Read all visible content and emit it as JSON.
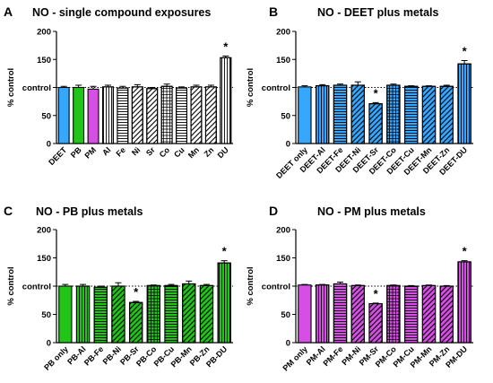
{
  "colors": {
    "deet": "#35a7ff",
    "pb": "#22c41a",
    "pm": "#d64fe4",
    "white": "#ffffff"
  },
  "chart_data": [
    {
      "panel": "A",
      "title": "NO - single compound exposures",
      "type": "bar",
      "ylabel": "% control",
      "ylim": [
        0,
        200
      ],
      "yticks": [
        0,
        50,
        100,
        150,
        200
      ],
      "ytick_labels": [
        "0",
        "50",
        "control",
        "150",
        "200"
      ],
      "reference_line": 100,
      "categories": [
        "DEET",
        "PB",
        "PM",
        "Al",
        "Fe",
        "Ni",
        "Sr",
        "Co",
        "Cu",
        "Mn",
        "Zn",
        "DU"
      ],
      "values": [
        100,
        100,
        97,
        101,
        99,
        101,
        98,
        102,
        99,
        101,
        101,
        153
      ],
      "errors": [
        2,
        4,
        5,
        3,
        3,
        4,
        2,
        4,
        2,
        3,
        3,
        3
      ],
      "significant": [
        false,
        false,
        false,
        false,
        false,
        false,
        false,
        false,
        false,
        false,
        false,
        true
      ],
      "fills": [
        "deet",
        "pb",
        "pm",
        "white",
        "white",
        "white",
        "white",
        "white",
        "white",
        "white",
        "white",
        "white"
      ],
      "patterns": [
        "solid",
        "solid",
        "solid",
        "vlines",
        "hlines",
        "diag",
        "diag",
        "grid",
        "hlines",
        "diag",
        "diag",
        "vlines"
      ],
      "star": "*"
    },
    {
      "panel": "B",
      "title": "NO - DEET plus metals",
      "type": "bar",
      "ylabel": "% control",
      "ylim": [
        0,
        200
      ],
      "yticks": [
        0,
        50,
        100,
        150,
        200
      ],
      "ytick_labels": [
        "0",
        "50",
        "control",
        "150",
        "200"
      ],
      "reference_line": 100,
      "categories": [
        "DEET only",
        "DEET-Al",
        "DEET-Fe",
        "DEET-Ni",
        "DEET-Sr",
        "DEET-Co",
        "DEET-Cu",
        "DEET-Mn",
        "DEET-Zn",
        "DEET-DU"
      ],
      "values": [
        101,
        103,
        104,
        104,
        71,
        104,
        102,
        102,
        102,
        142
      ],
      "errors": [
        2,
        2,
        2,
        6,
        2,
        2,
        1,
        1,
        2,
        6
      ],
      "significant": [
        false,
        false,
        false,
        false,
        true,
        false,
        false,
        false,
        false,
        true
      ],
      "fills": [
        "deet",
        "deet",
        "deet",
        "deet",
        "deet",
        "deet",
        "deet",
        "deet",
        "deet",
        "deet"
      ],
      "patterns": [
        "solid",
        "vlines",
        "hlines",
        "diag",
        "diag",
        "grid",
        "hlines",
        "diag",
        "diag",
        "vlines"
      ],
      "star": "*"
    },
    {
      "panel": "C",
      "title": "NO - PB plus metals",
      "type": "bar",
      "ylabel": "% control",
      "ylim": [
        0,
        200
      ],
      "yticks": [
        0,
        50,
        100,
        150,
        200
      ],
      "ytick_labels": [
        "0",
        "50",
        "control",
        "150",
        "200"
      ],
      "reference_line": 100,
      "categories": [
        "PB only",
        "PB-Al",
        "PB-Fe",
        "PB-Ni",
        "PB-Sr",
        "PB-Co",
        "PB-Cu",
        "PB-Mn",
        "PB-Zn",
        "PB-DU"
      ],
      "values": [
        100,
        100,
        98,
        100,
        71,
        101,
        101,
        104,
        101,
        141
      ],
      "errors": [
        3,
        3,
        2,
        6,
        2,
        1,
        2,
        5,
        2,
        4
      ],
      "significant": [
        false,
        false,
        false,
        false,
        true,
        false,
        false,
        false,
        false,
        true
      ],
      "fills": [
        "pb",
        "pb",
        "pb",
        "pb",
        "pb",
        "pb",
        "pb",
        "pb",
        "pb",
        "pb"
      ],
      "patterns": [
        "solid",
        "vlines",
        "hlines",
        "diag",
        "diag",
        "grid",
        "hlines",
        "diag",
        "diag",
        "vlines"
      ],
      "star": "*"
    },
    {
      "panel": "D",
      "title": "NO - PM plus metals",
      "type": "bar",
      "ylabel": "% control",
      "ylim": [
        0,
        200
      ],
      "yticks": [
        0,
        50,
        100,
        150,
        200
      ],
      "ytick_labels": [
        "0",
        "50",
        "control",
        "150",
        "200"
      ],
      "reference_line": 100,
      "categories": [
        "PM only",
        "PM-Al",
        "PM-Fe",
        "PM-Ni",
        "PM-Sr",
        "PM-Co",
        "PM-Cu",
        "PM-Mn",
        "PM-Zn",
        "PM-DU"
      ],
      "values": [
        102,
        102,
        104,
        101,
        69,
        101,
        100,
        101,
        100,
        143
      ],
      "errors": [
        1,
        1,
        3,
        1,
        1,
        1,
        1,
        1,
        1,
        2
      ],
      "significant": [
        false,
        false,
        false,
        false,
        true,
        false,
        false,
        false,
        false,
        true
      ],
      "fills": [
        "pm",
        "pm",
        "pm",
        "pm",
        "pm",
        "pm",
        "pm",
        "pm",
        "pm",
        "pm"
      ],
      "patterns": [
        "solid",
        "vlines",
        "hlines",
        "diag",
        "diag",
        "grid",
        "hlines",
        "diag",
        "diag",
        "vlines"
      ],
      "star": "*"
    }
  ]
}
